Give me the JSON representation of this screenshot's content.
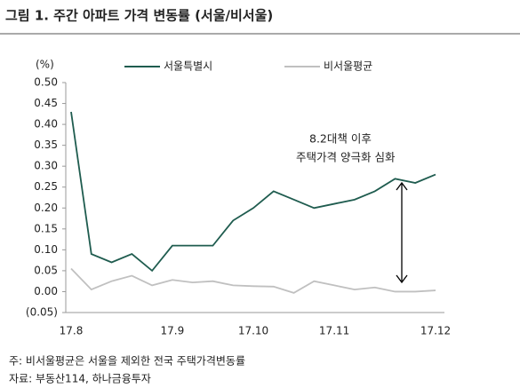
{
  "chart_data": {
    "type": "line",
    "title": "그림 1. 주간 아파트 가격 변동률 (서울/비서울)",
    "ylabel": "(%)",
    "categories": [
      "17.8",
      null,
      null,
      null,
      null,
      "17.9",
      null,
      null,
      null,
      "17.10",
      null,
      null,
      null,
      "17.11",
      null,
      null,
      null,
      null,
      "17.12"
    ],
    "series": [
      {
        "name": "서울특별시",
        "color": "#1f5c4f",
        "values": [
          0.43,
          0.09,
          0.07,
          0.09,
          0.05,
          0.11,
          0.11,
          0.11,
          0.17,
          0.2,
          0.24,
          0.22,
          0.2,
          0.21,
          0.22,
          0.24,
          0.27,
          0.26,
          0.28
        ]
      },
      {
        "name": "비서울평균",
        "color": "#c0c0c0",
        "values": [
          0.055,
          0.005,
          0.025,
          0.038,
          0.015,
          0.028,
          0.022,
          0.025,
          0.015,
          0.013,
          0.012,
          -0.003,
          0.025,
          0.015,
          0.005,
          0.01,
          0.0,
          0.0,
          0.003
        ]
      }
    ],
    "ylim": [
      -0.05,
      0.5
    ],
    "yticks": [
      {
        "value": 0.5,
        "label": "0.50"
      },
      {
        "value": 0.45,
        "label": "0.45"
      },
      {
        "value": 0.4,
        "label": "0.40"
      },
      {
        "value": 0.35,
        "label": "0.35"
      },
      {
        "value": 0.3,
        "label": "0.30"
      },
      {
        "value": 0.25,
        "label": "0.25"
      },
      {
        "value": 0.2,
        "label": "0.20"
      },
      {
        "value": 0.15,
        "label": "0.15"
      },
      {
        "value": 0.1,
        "label": "0.10"
      },
      {
        "value": 0.05,
        "label": "0.05"
      },
      {
        "value": 0,
        "label": "0.00"
      },
      {
        "value": -0.05,
        "label": "(0.05)"
      }
    ],
    "annotation": [
      "8.2대책 이후",
      "주택가격 양극화 심화"
    ],
    "notes": [
      "주: 비서울평균은 서울을 제외한 전국 주택가격변동률",
      "자료: 부동산114, 하나금융투자"
    ]
  }
}
